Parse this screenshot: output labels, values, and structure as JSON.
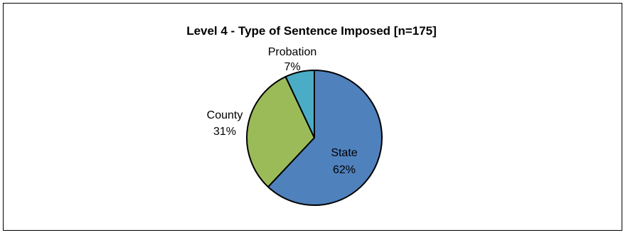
{
  "chart_data": {
    "type": "pie",
    "title": "Level 4 - Type of Sentence Imposed [n=175]",
    "slices": [
      {
        "label": "State",
        "percent_label": "62%",
        "value": 62,
        "color": "#4f81bd"
      },
      {
        "label": "County",
        "percent_label": "31%",
        "value": 31,
        "color": "#9bbb59"
      },
      {
        "label": "Probation",
        "percent_label": "7%",
        "value": 7,
        "color": "#4bacc6"
      }
    ],
    "legend": "none",
    "grid": false
  }
}
